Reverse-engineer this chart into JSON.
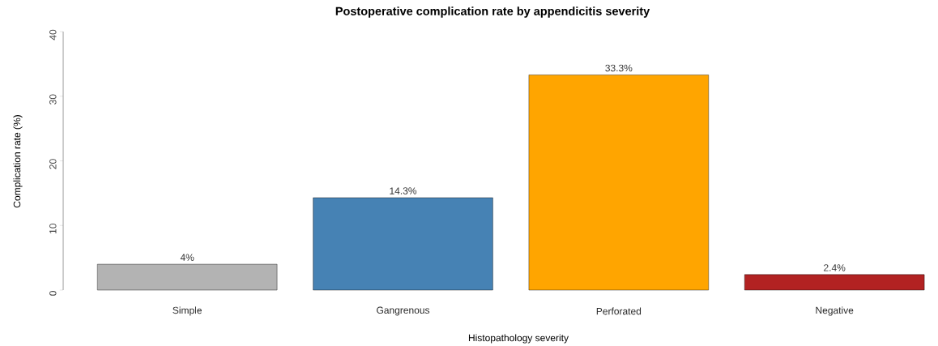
{
  "chart_data": {
    "type": "bar",
    "title": "Postoperative complication rate by appendicitis severity",
    "xlabel": "Histopathology severity",
    "ylabel": "Complication rate (%)",
    "categories": [
      "Simple",
      "Gangrenous",
      "Perforated",
      "Negative"
    ],
    "values": [
      4,
      14.3,
      33.3,
      2.4
    ],
    "colors": [
      "#b3b3b3",
      "#4682b4",
      "#ffa500",
      "#b22222"
    ],
    "value_labels": [
      "4%",
      "14.3%",
      "33.3%",
      "2.4%"
    ],
    "ylim": [
      0,
      40
    ],
    "yticks": [
      0,
      10,
      20,
      30,
      40
    ]
  }
}
